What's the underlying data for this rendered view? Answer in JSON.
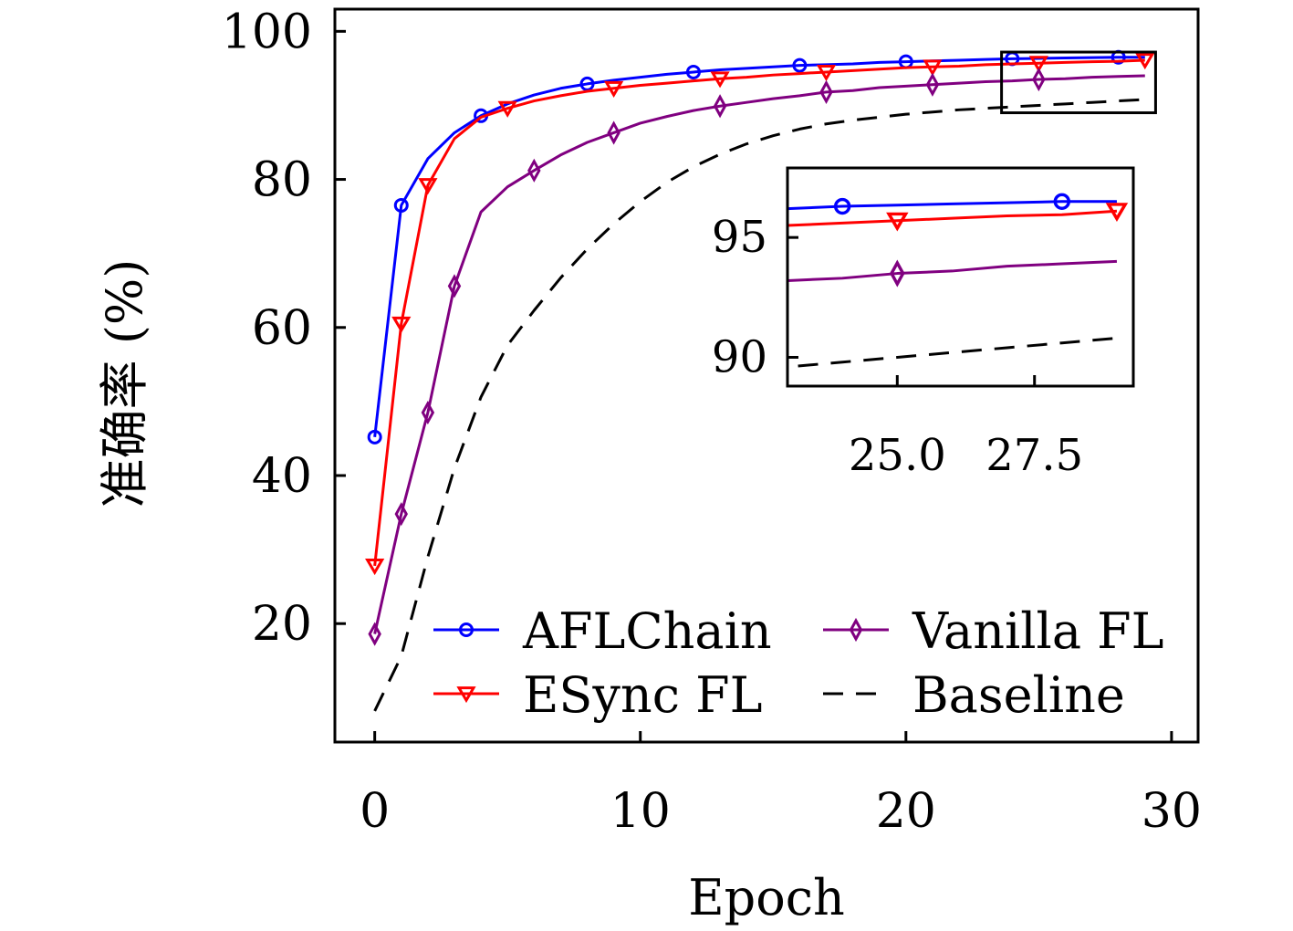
{
  "chart_data": {
    "type": "line",
    "xlabel": "Epoch",
    "ylabel": "准确率 (%)",
    "xlim": [
      -1.5,
      31
    ],
    "ylim": [
      4,
      103
    ],
    "xticks": [
      "0",
      "10",
      "20",
      "30"
    ],
    "yticks": [
      "20",
      "40",
      "60",
      "80",
      "100"
    ],
    "grid": false,
    "legend": {
      "placement": "bottom-right",
      "columns": 2
    },
    "colors": {
      "AFLChain": "#0000ff",
      "ESync FL": "#ff0000",
      "Vanilla FL": "#800080",
      "Baseline": "#000000"
    },
    "series": [
      {
        "name": "AFLChain",
        "marker": "circle",
        "x": [
          0,
          1,
          2,
          3,
          4,
          5,
          6,
          7,
          8,
          9,
          10,
          11,
          12,
          13,
          14,
          15,
          16,
          17,
          18,
          19,
          20,
          21,
          22,
          23,
          24,
          25,
          26,
          27,
          28,
          29
        ],
        "y": [
          45.2,
          76.5,
          82.8,
          86.3,
          88.6,
          90.2,
          91.4,
          92.3,
          92.9,
          93.4,
          93.8,
          94.2,
          94.5,
          94.8,
          95.0,
          95.2,
          95.4,
          95.5,
          95.6,
          95.8,
          95.9,
          96.0,
          96.1,
          96.2,
          96.3,
          96.35,
          96.4,
          96.45,
          96.5,
          96.5
        ],
        "marker_x": [
          0,
          1,
          4,
          8,
          12,
          16,
          20,
          24,
          28
        ]
      },
      {
        "name": "ESync FL",
        "marker": "triangle-down",
        "x": [
          0,
          1,
          2,
          3,
          4,
          5,
          6,
          7,
          8,
          9,
          10,
          11,
          12,
          13,
          14,
          15,
          16,
          17,
          18,
          19,
          20,
          21,
          22,
          23,
          24,
          25,
          26,
          27,
          28,
          29
        ],
        "y": [
          27.8,
          60.5,
          79.2,
          85.5,
          88.4,
          89.6,
          90.6,
          91.3,
          91.9,
          92.3,
          92.7,
          93.0,
          93.3,
          93.6,
          93.8,
          94.1,
          94.3,
          94.5,
          94.7,
          94.9,
          95.1,
          95.2,
          95.3,
          95.5,
          95.6,
          95.7,
          95.8,
          95.9,
          95.95,
          96.1
        ],
        "marker_x": [
          0,
          1,
          2,
          5,
          9,
          13,
          17,
          21,
          25,
          29
        ]
      },
      {
        "name": "Vanilla FL",
        "marker": "thin-diamond",
        "x": [
          0,
          1,
          2,
          3,
          4,
          5,
          6,
          7,
          8,
          9,
          10,
          11,
          12,
          13,
          14,
          15,
          16,
          17,
          18,
          19,
          20,
          21,
          22,
          23,
          24,
          25,
          26,
          27,
          28,
          29
        ],
        "y": [
          18.6,
          34.8,
          48.5,
          65.6,
          75.6,
          79.0,
          81.2,
          83.3,
          85.0,
          86.3,
          87.6,
          88.5,
          89.3,
          89.9,
          90.4,
          90.9,
          91.3,
          91.8,
          92.0,
          92.4,
          92.6,
          92.8,
          93.0,
          93.2,
          93.3,
          93.5,
          93.6,
          93.8,
          93.9,
          94.0
        ],
        "marker_x": [
          0,
          1,
          2,
          3,
          6,
          9,
          13,
          17,
          21,
          25
        ]
      },
      {
        "name": "Baseline",
        "marker": "none",
        "dash": "dashed",
        "x": [
          0,
          1,
          2,
          3,
          4,
          5,
          6,
          7,
          8,
          9,
          10,
          11,
          12,
          13,
          14,
          15,
          16,
          17,
          18,
          19,
          20,
          21,
          22,
          23,
          24,
          25,
          26,
          27,
          28,
          29
        ],
        "y": [
          8.2,
          15.6,
          29.0,
          41.0,
          50.6,
          57.6,
          62.3,
          66.7,
          70.6,
          74.0,
          77.0,
          79.6,
          81.7,
          83.4,
          84.8,
          85.9,
          86.8,
          87.5,
          88.0,
          88.4,
          88.8,
          89.1,
          89.4,
          89.6,
          89.8,
          90.0,
          90.2,
          90.4,
          90.6,
          90.8
        ]
      }
    ],
    "inset": {
      "xlim": [
        23.0,
        29.3
      ],
      "ylim": [
        88.8,
        97.9
      ],
      "xticks": [
        "25.0",
        "27.5"
      ],
      "yticks": [
        "90",
        "95"
      ],
      "zoom_box": {
        "xlim": [
          23.6,
          29.4
        ],
        "ylim": [
          89.0,
          97.2
        ]
      }
    }
  }
}
